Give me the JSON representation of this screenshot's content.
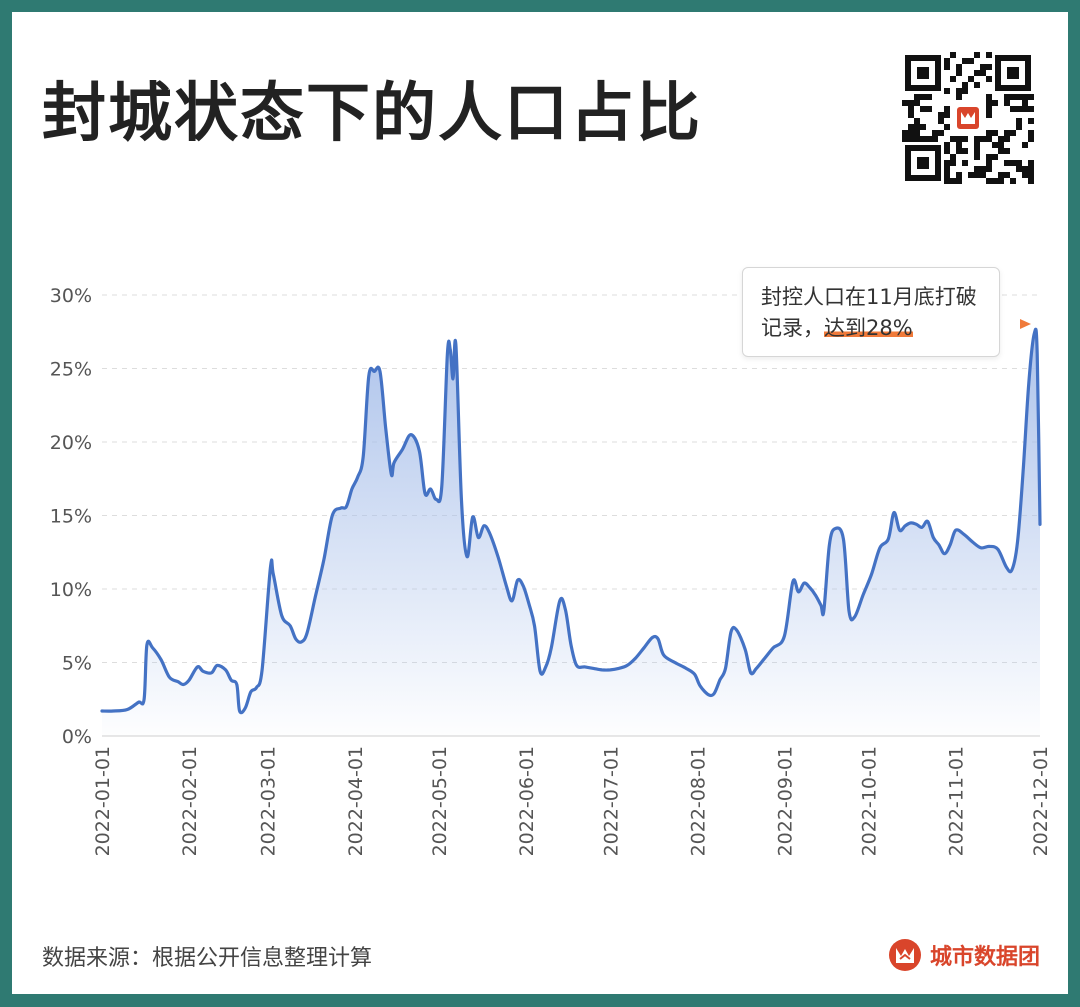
{
  "title": "封城状态下的人口占比",
  "footer": {
    "source": "数据来源：根据公开信息整理计算",
    "brand": "城市数据团"
  },
  "colors": {
    "line": "#4472c4",
    "fill_top": "#a9c0ea",
    "grid": "#dddddd",
    "accent": "#f07a3a",
    "brand": "#d9452b",
    "frame": "#2f7a72"
  },
  "annotation": {
    "line1": "封控人口在11月底打破",
    "line2_prefix": "记录，",
    "line2_highlight": "达到28%"
  },
  "chart_data": {
    "type": "area",
    "title": "封城状态下的人口占比",
    "xlabel": "",
    "ylabel": "",
    "ylim": [
      0,
      30
    ],
    "yticks": [
      "0%",
      "5%",
      "10%",
      "15%",
      "20%",
      "25%",
      "30%"
    ],
    "xticks": [
      "2022-01-01",
      "2022-02-01",
      "2022-03-01",
      "2022-04-01",
      "2022-05-01",
      "2022-06-01",
      "2022-07-01",
      "2022-08-01",
      "2022-09-01",
      "2022-10-01",
      "2022-11-01",
      "2022-12-01"
    ],
    "grid": true,
    "legend": "none",
    "points": [
      [
        "2022-01-01",
        1.7
      ],
      [
        "2022-01-05",
        1.7
      ],
      [
        "2022-01-10",
        1.8
      ],
      [
        "2022-01-14",
        2.3
      ],
      [
        "2022-01-16",
        2.5
      ],
      [
        "2022-01-17",
        6.2
      ],
      [
        "2022-01-19",
        6.0
      ],
      [
        "2022-01-22",
        5.2
      ],
      [
        "2022-01-25",
        4.0
      ],
      [
        "2022-01-28",
        3.7
      ],
      [
        "2022-01-30",
        3.5
      ],
      [
        "2022-02-01",
        3.8
      ],
      [
        "2022-02-04",
        4.7
      ],
      [
        "2022-02-06",
        4.4
      ],
      [
        "2022-02-09",
        4.3
      ],
      [
        "2022-02-11",
        4.8
      ],
      [
        "2022-02-14",
        4.5
      ],
      [
        "2022-02-16",
        3.8
      ],
      [
        "2022-02-18",
        3.5
      ],
      [
        "2022-02-19",
        1.7
      ],
      [
        "2022-02-21",
        1.9
      ],
      [
        "2022-02-23",
        3.0
      ],
      [
        "2022-02-25",
        3.3
      ],
      [
        "2022-02-27",
        4.5
      ],
      [
        "2022-03-02",
        11.5
      ],
      [
        "2022-03-03",
        11.0
      ],
      [
        "2022-03-06",
        8.2
      ],
      [
        "2022-03-09",
        7.5
      ],
      [
        "2022-03-11",
        6.6
      ],
      [
        "2022-03-13",
        6.4
      ],
      [
        "2022-03-15",
        7.0
      ],
      [
        "2022-03-18",
        9.5
      ],
      [
        "2022-03-21",
        12.0
      ],
      [
        "2022-03-24",
        15.0
      ],
      [
        "2022-03-27",
        15.5
      ],
      [
        "2022-03-29",
        15.6
      ],
      [
        "2022-03-31",
        16.8
      ],
      [
        "2022-04-02",
        17.6
      ],
      [
        "2022-04-04",
        19.0
      ],
      [
        "2022-04-06",
        24.5
      ],
      [
        "2022-04-08",
        24.8
      ],
      [
        "2022-04-10",
        24.8
      ],
      [
        "2022-04-12",
        21.0
      ],
      [
        "2022-04-14",
        17.8
      ],
      [
        "2022-04-15",
        18.6
      ],
      [
        "2022-04-18",
        19.5
      ],
      [
        "2022-04-21",
        20.5
      ],
      [
        "2022-04-24",
        19.4
      ],
      [
        "2022-04-26",
        16.5
      ],
      [
        "2022-04-28",
        16.8
      ],
      [
        "2022-04-30",
        16.1
      ],
      [
        "2022-05-02",
        17.0
      ],
      [
        "2022-05-04",
        26.0
      ],
      [
        "2022-05-05",
        26.3
      ],
      [
        "2022-05-06",
        24.3
      ],
      [
        "2022-05-07",
        26.6
      ],
      [
        "2022-05-09",
        16.0
      ],
      [
        "2022-05-11",
        12.2
      ],
      [
        "2022-05-13",
        14.9
      ],
      [
        "2022-05-15",
        13.5
      ],
      [
        "2022-05-17",
        14.3
      ],
      [
        "2022-05-19",
        13.8
      ],
      [
        "2022-05-22",
        12.2
      ],
      [
        "2022-05-25",
        10.2
      ],
      [
        "2022-05-27",
        9.2
      ],
      [
        "2022-05-29",
        10.6
      ],
      [
        "2022-05-31",
        10.2
      ],
      [
        "2022-06-02",
        9.0
      ],
      [
        "2022-06-04",
        7.5
      ],
      [
        "2022-06-06",
        4.4
      ],
      [
        "2022-06-08",
        4.7
      ],
      [
        "2022-06-10",
        6.0
      ],
      [
        "2022-06-13",
        9.2
      ],
      [
        "2022-06-15",
        8.6
      ],
      [
        "2022-06-17",
        6.2
      ],
      [
        "2022-06-19",
        4.8
      ],
      [
        "2022-06-22",
        4.7
      ],
      [
        "2022-06-25",
        4.6
      ],
      [
        "2022-06-28",
        4.5
      ],
      [
        "2022-07-01",
        4.5
      ],
      [
        "2022-07-04",
        4.6
      ],
      [
        "2022-07-07",
        4.8
      ],
      [
        "2022-07-10",
        5.3
      ],
      [
        "2022-07-13",
        6.0
      ],
      [
        "2022-07-16",
        6.7
      ],
      [
        "2022-07-18",
        6.6
      ],
      [
        "2022-07-20",
        5.5
      ],
      [
        "2022-07-24",
        5.0
      ],
      [
        "2022-07-28",
        4.6
      ],
      [
        "2022-07-31",
        4.2
      ],
      [
        "2022-08-02",
        3.4
      ],
      [
        "2022-08-05",
        2.8
      ],
      [
        "2022-08-07",
        2.9
      ],
      [
        "2022-08-09",
        3.8
      ],
      [
        "2022-08-11",
        4.6
      ],
      [
        "2022-08-13",
        7.1
      ],
      [
        "2022-08-15",
        7.2
      ],
      [
        "2022-08-18",
        5.9
      ],
      [
        "2022-08-20",
        4.3
      ],
      [
        "2022-08-22",
        4.6
      ],
      [
        "2022-08-25",
        5.3
      ],
      [
        "2022-08-28",
        6.0
      ],
      [
        "2022-09-01",
        6.8
      ],
      [
        "2022-09-04",
        10.5
      ],
      [
        "2022-09-06",
        9.8
      ],
      [
        "2022-09-08",
        10.4
      ],
      [
        "2022-09-10",
        10.1
      ],
      [
        "2022-09-12",
        9.6
      ],
      [
        "2022-09-14",
        8.9
      ],
      [
        "2022-09-15",
        8.5
      ],
      [
        "2022-09-17",
        13.0
      ],
      [
        "2022-09-19",
        14.1
      ],
      [
        "2022-09-22",
        13.4
      ],
      [
        "2022-09-24",
        8.5
      ],
      [
        "2022-09-26",
        8.1
      ],
      [
        "2022-09-29",
        9.6
      ],
      [
        "2022-10-02",
        11.0
      ],
      [
        "2022-10-05",
        12.8
      ],
      [
        "2022-10-08",
        13.4
      ],
      [
        "2022-10-10",
        15.2
      ],
      [
        "2022-10-12",
        14.0
      ],
      [
        "2022-10-14",
        14.3
      ],
      [
        "2022-10-16",
        14.5
      ],
      [
        "2022-10-18",
        14.4
      ],
      [
        "2022-10-20",
        14.2
      ],
      [
        "2022-10-22",
        14.6
      ],
      [
        "2022-10-24",
        13.5
      ],
      [
        "2022-10-26",
        13.0
      ],
      [
        "2022-10-28",
        12.4
      ],
      [
        "2022-10-30",
        13.0
      ],
      [
        "2022-11-01",
        14.0
      ],
      [
        "2022-11-04",
        13.7
      ],
      [
        "2022-11-07",
        13.2
      ],
      [
        "2022-11-10",
        12.8
      ],
      [
        "2022-11-13",
        12.9
      ],
      [
        "2022-11-16",
        12.7
      ],
      [
        "2022-11-19",
        11.5
      ],
      [
        "2022-11-21",
        11.3
      ],
      [
        "2022-11-23",
        13.2
      ],
      [
        "2022-11-25",
        18.0
      ],
      [
        "2022-11-27",
        24.0
      ],
      [
        "2022-11-29",
        27.4
      ],
      [
        "2022-11-30",
        26.0
      ],
      [
        "2022-12-01",
        14.4
      ]
    ]
  }
}
